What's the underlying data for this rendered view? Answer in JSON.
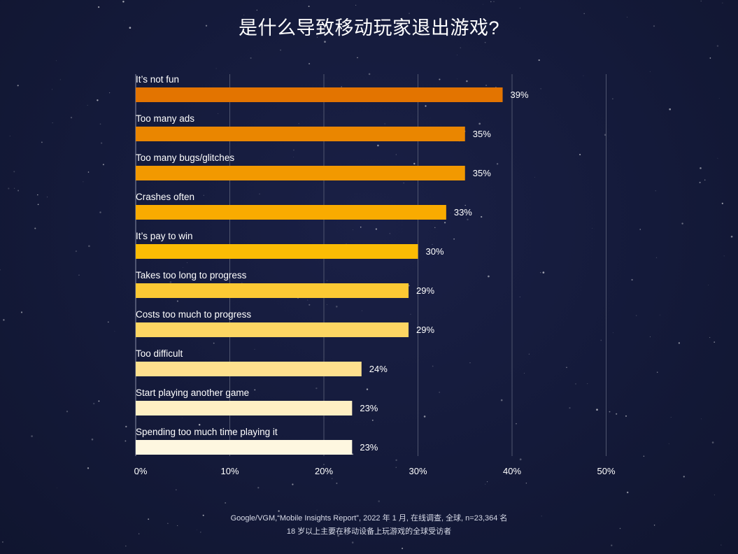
{
  "title": "是什么导致移动玩家退出游戏?",
  "footnote": {
    "line1": "Google/VGM,“Mobile Insights Report”, 2022 年 1 月, 在线调查, 全球, n=23,364 名",
    "line2": "18 岁以上主要在移动设备上玩游戏的全球受访者"
  },
  "chart_data": {
    "type": "bar",
    "orientation": "horizontal",
    "categories": [
      "It’s not fun",
      "Too many ads",
      "Too many bugs/glitches",
      "Crashes often",
      "It’s pay to win",
      "Takes too long to progress",
      "Costs too much to progress",
      "Too difficult",
      "Start playing another game",
      "Spending too much time playing it"
    ],
    "values": [
      39,
      35,
      35,
      33,
      30,
      29,
      29,
      24,
      23,
      23
    ],
    "value_labels": [
      "39%",
      "35%",
      "35%",
      "33%",
      "30%",
      "29%",
      "29%",
      "24%",
      "23%",
      "23%"
    ],
    "bar_colors": [
      "#e37400",
      "#ea8600",
      "#f29900",
      "#f9ab00",
      "#fbbc04",
      "#fcc934",
      "#fdd663",
      "#fee08e",
      "#feefc3",
      "#fef7e0"
    ],
    "xlim": [
      0,
      50
    ],
    "xticks": [
      "0%",
      "10%",
      "20%",
      "30%",
      "40%",
      "50%"
    ],
    "grid": true
  }
}
